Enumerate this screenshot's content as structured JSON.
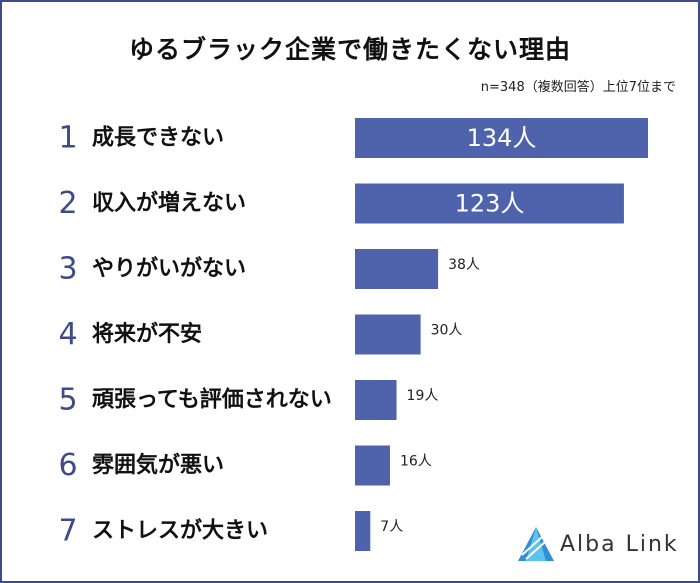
{
  "chart_data": {
    "type": "bar",
    "orientation": "horizontal",
    "title": "ゆるブラック企業で働きたくない理由",
    "subtitle": "n=348（複数回答）上位7位まで",
    "ranks": [
      "1",
      "2",
      "3",
      "4",
      "5",
      "6",
      "7"
    ],
    "categories": [
      "成長できない",
      "収入が増えない",
      "やりがいがない",
      "将来が不安",
      "頑張っても評価されない",
      "雰囲気が悪い",
      "ストレスが大きい"
    ],
    "values": [
      134,
      123,
      38,
      30,
      19,
      16,
      7
    ],
    "value_labels": [
      "134人",
      "123人",
      "38人",
      "30人",
      "19人",
      "16人",
      "7人"
    ],
    "bar_color": "#4f63ad"
  },
  "brand": {
    "name": "Alba Link"
  }
}
